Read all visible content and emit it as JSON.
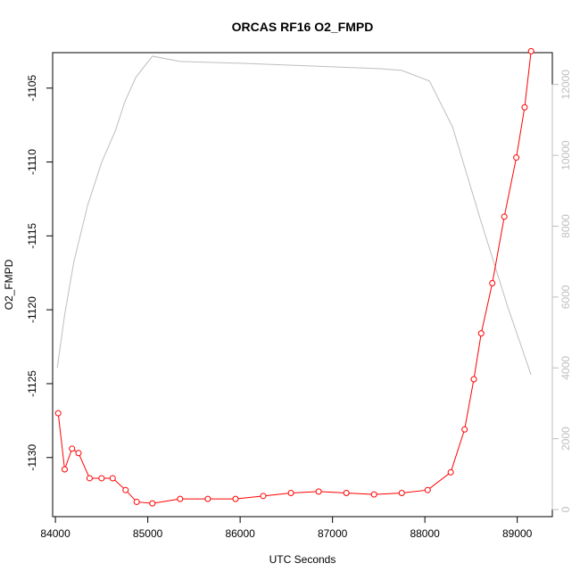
{
  "chart_data": {
    "type": "line",
    "title": "ORCAS RF16 O2_FMPD",
    "xlabel": "UTC Seconds",
    "ylabel": "O2_FMPD",
    "xlim": [
      83970,
      89380
    ],
    "ylim": [
      -1134.0,
      -1102.6
    ],
    "y2lim": [
      -200,
      12900
    ],
    "x_ticks": [
      84000,
      85000,
      86000,
      87000,
      88000,
      89000
    ],
    "y_ticks": [
      -1130,
      -1125,
      -1120,
      -1115,
      -1110,
      -1105
    ],
    "y2_ticks": [
      0,
      2000,
      4000,
      6000,
      8000,
      10000,
      12000
    ],
    "grid": false,
    "series": [
      {
        "role": "primary",
        "color": "#ff0000",
        "marker": "open-circle",
        "x": [
          84030,
          84100,
          84180,
          84250,
          84370,
          84500,
          84620,
          84760,
          84880,
          85050,
          85350,
          85650,
          85950,
          86250,
          86550,
          86850,
          87150,
          87450,
          87750,
          88030,
          88280,
          88430,
          88530,
          88610,
          88730,
          88860,
          88990,
          89080,
          89150
        ],
        "y": [
          -1127.0,
          -1130.8,
          -1129.4,
          -1129.7,
          -1131.4,
          -1131.4,
          -1131.4,
          -1132.2,
          -1133.0,
          -1133.1,
          -1132.8,
          -1132.8,
          -1132.8,
          -1132.6,
          -1132.4,
          -1132.3,
          -1132.4,
          -1132.5,
          -1132.4,
          -1132.2,
          -1131.0,
          -1128.1,
          -1124.7,
          -1121.6,
          -1118.2,
          -1113.7,
          -1109.7,
          -1106.3,
          -1102.5
        ]
      },
      {
        "role": "secondary",
        "color": "#bebebe",
        "x": [
          84020,
          84100,
          84200,
          84350,
          84500,
          84650,
          84750,
          84870,
          85050,
          85350,
          86000,
          86500,
          87000,
          87500,
          87750,
          88050,
          88300,
          88600,
          88900,
          89150
        ],
        "y": [
          4000,
          5500,
          7000,
          8600,
          9800,
          10700,
          11500,
          12200,
          12800,
          12650,
          12600,
          12550,
          12500,
          12450,
          12400,
          12100,
          10800,
          8200,
          5700,
          3800
        ]
      }
    ]
  }
}
